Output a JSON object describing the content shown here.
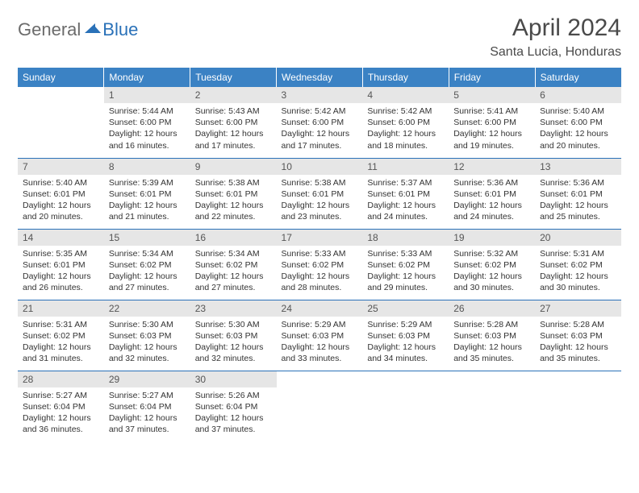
{
  "logo": {
    "general": "General",
    "blue": "Blue",
    "mark_color": "#2a71b8"
  },
  "title": "April 2024",
  "location": "Santa Lucia, Honduras",
  "header_bg": "#3b82c4",
  "header_fg": "#ffffff",
  "daynum_bg": "#e6e6e6",
  "rule_color": "#2a71b8",
  "text_color": "#333333",
  "font_family": "Arial",
  "day_headers": [
    "Sunday",
    "Monday",
    "Tuesday",
    "Wednesday",
    "Thursday",
    "Friday",
    "Saturday"
  ],
  "weeks": [
    [
      null,
      {
        "n": "1",
        "sr": "5:44 AM",
        "ss": "6:00 PM",
        "dh": "12",
        "dm": "16"
      },
      {
        "n": "2",
        "sr": "5:43 AM",
        "ss": "6:00 PM",
        "dh": "12",
        "dm": "17"
      },
      {
        "n": "3",
        "sr": "5:42 AM",
        "ss": "6:00 PM",
        "dh": "12",
        "dm": "17"
      },
      {
        "n": "4",
        "sr": "5:42 AM",
        "ss": "6:00 PM",
        "dh": "12",
        "dm": "18"
      },
      {
        "n": "5",
        "sr": "5:41 AM",
        "ss": "6:00 PM",
        "dh": "12",
        "dm": "19"
      },
      {
        "n": "6",
        "sr": "5:40 AM",
        "ss": "6:00 PM",
        "dh": "12",
        "dm": "20"
      }
    ],
    [
      {
        "n": "7",
        "sr": "5:40 AM",
        "ss": "6:01 PM",
        "dh": "12",
        "dm": "20"
      },
      {
        "n": "8",
        "sr": "5:39 AM",
        "ss": "6:01 PM",
        "dh": "12",
        "dm": "21"
      },
      {
        "n": "9",
        "sr": "5:38 AM",
        "ss": "6:01 PM",
        "dh": "12",
        "dm": "22"
      },
      {
        "n": "10",
        "sr": "5:38 AM",
        "ss": "6:01 PM",
        "dh": "12",
        "dm": "23"
      },
      {
        "n": "11",
        "sr": "5:37 AM",
        "ss": "6:01 PM",
        "dh": "12",
        "dm": "24"
      },
      {
        "n": "12",
        "sr": "5:36 AM",
        "ss": "6:01 PM",
        "dh": "12",
        "dm": "24"
      },
      {
        "n": "13",
        "sr": "5:36 AM",
        "ss": "6:01 PM",
        "dh": "12",
        "dm": "25"
      }
    ],
    [
      {
        "n": "14",
        "sr": "5:35 AM",
        "ss": "6:01 PM",
        "dh": "12",
        "dm": "26"
      },
      {
        "n": "15",
        "sr": "5:34 AM",
        "ss": "6:02 PM",
        "dh": "12",
        "dm": "27"
      },
      {
        "n": "16",
        "sr": "5:34 AM",
        "ss": "6:02 PM",
        "dh": "12",
        "dm": "27"
      },
      {
        "n": "17",
        "sr": "5:33 AM",
        "ss": "6:02 PM",
        "dh": "12",
        "dm": "28"
      },
      {
        "n": "18",
        "sr": "5:33 AM",
        "ss": "6:02 PM",
        "dh": "12",
        "dm": "29"
      },
      {
        "n": "19",
        "sr": "5:32 AM",
        "ss": "6:02 PM",
        "dh": "12",
        "dm": "30"
      },
      {
        "n": "20",
        "sr": "5:31 AM",
        "ss": "6:02 PM",
        "dh": "12",
        "dm": "30"
      }
    ],
    [
      {
        "n": "21",
        "sr": "5:31 AM",
        "ss": "6:02 PM",
        "dh": "12",
        "dm": "31"
      },
      {
        "n": "22",
        "sr": "5:30 AM",
        "ss": "6:03 PM",
        "dh": "12",
        "dm": "32"
      },
      {
        "n": "23",
        "sr": "5:30 AM",
        "ss": "6:03 PM",
        "dh": "12",
        "dm": "32"
      },
      {
        "n": "24",
        "sr": "5:29 AM",
        "ss": "6:03 PM",
        "dh": "12",
        "dm": "33"
      },
      {
        "n": "25",
        "sr": "5:29 AM",
        "ss": "6:03 PM",
        "dh": "12",
        "dm": "34"
      },
      {
        "n": "26",
        "sr": "5:28 AM",
        "ss": "6:03 PM",
        "dh": "12",
        "dm": "35"
      },
      {
        "n": "27",
        "sr": "5:28 AM",
        "ss": "6:03 PM",
        "dh": "12",
        "dm": "35"
      }
    ],
    [
      {
        "n": "28",
        "sr": "5:27 AM",
        "ss": "6:04 PM",
        "dh": "12",
        "dm": "36"
      },
      {
        "n": "29",
        "sr": "5:27 AM",
        "ss": "6:04 PM",
        "dh": "12",
        "dm": "37"
      },
      {
        "n": "30",
        "sr": "5:26 AM",
        "ss": "6:04 PM",
        "dh": "12",
        "dm": "37"
      },
      null,
      null,
      null,
      null
    ]
  ]
}
